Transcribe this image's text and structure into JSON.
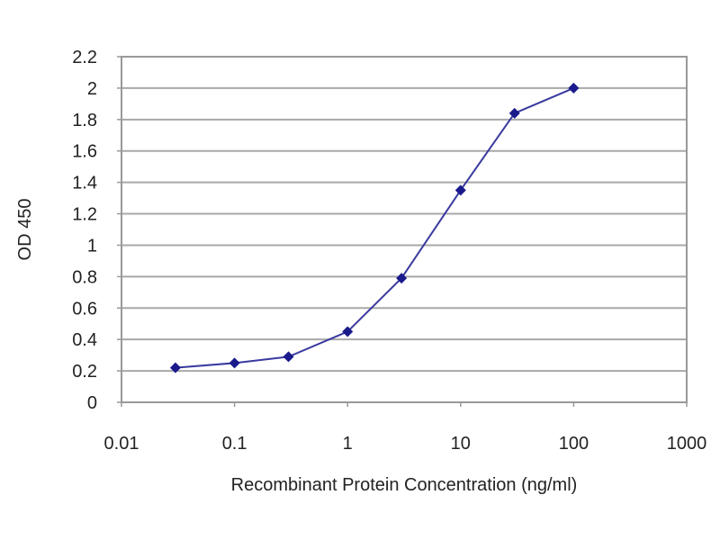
{
  "chart_data": {
    "type": "line",
    "title": "",
    "xlabel": "Recombinant Protein Concentration (ng/ml)",
    "ylabel": "OD 450",
    "x_scale": "log",
    "xlim": [
      0.01,
      1000
    ],
    "ylim": [
      0,
      2.2
    ],
    "x_ticks": [
      "0.01",
      "0.1",
      "1",
      "10",
      "100",
      "1000"
    ],
    "y_ticks": [
      "0",
      "0.2",
      "0.4",
      "0.6",
      "0.8",
      "1",
      "1.2",
      "1.4",
      "1.6",
      "1.8",
      "2",
      "2.2"
    ],
    "grid": "horizontal",
    "legend": "none",
    "series": [
      {
        "x": [
          0.03,
          0.1,
          0.3,
          1,
          3,
          10,
          30,
          100
        ],
        "y": [
          0.22,
          0.25,
          0.29,
          0.45,
          0.79,
          1.35,
          1.84,
          2.0
        ],
        "color": "#1a1a8c",
        "marker": "diamond"
      }
    ]
  }
}
